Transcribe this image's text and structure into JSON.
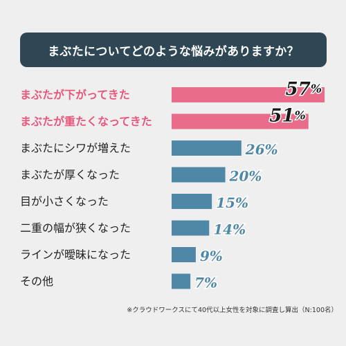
{
  "title": "まぶたについてどのような悩みがありますか？",
  "footnote": "※クラウドワークスにて40代以上女性を対象に調査し算出（N:100名）",
  "colors": {
    "highlight_bar": "#e96d8a",
    "normal_bar": "#4e88a6",
    "highlight_label": "#e8577c",
    "normal_label": "#222222",
    "highlight_value": "#1a1a1a",
    "normal_value": "#4e88a6",
    "banner": "#2f4754"
  },
  "chart_data": {
    "type": "bar",
    "orientation": "horizontal",
    "title": "まぶたについてどのような悩みがありますか？",
    "categories": [
      "まぶたが下がってきた",
      "まぶたが重たくなってきた",
      "まぶたにシワが増えた",
      "まぶたが厚くなった",
      "目が小さくなった",
      "二重の幅が狭くなった",
      "ラインが曖昧になった",
      "その他"
    ],
    "values": [
      57,
      51,
      26,
      20,
      15,
      14,
      9,
      7
    ],
    "value_labels": [
      "57%",
      "51%",
      "26%",
      "20%",
      "15%",
      "14%",
      "9%",
      "7%"
    ],
    "highlighted": [
      true,
      true,
      false,
      false,
      false,
      false,
      false,
      false
    ],
    "xlim": [
      0,
      57
    ],
    "grid": false,
    "legend": "none"
  }
}
